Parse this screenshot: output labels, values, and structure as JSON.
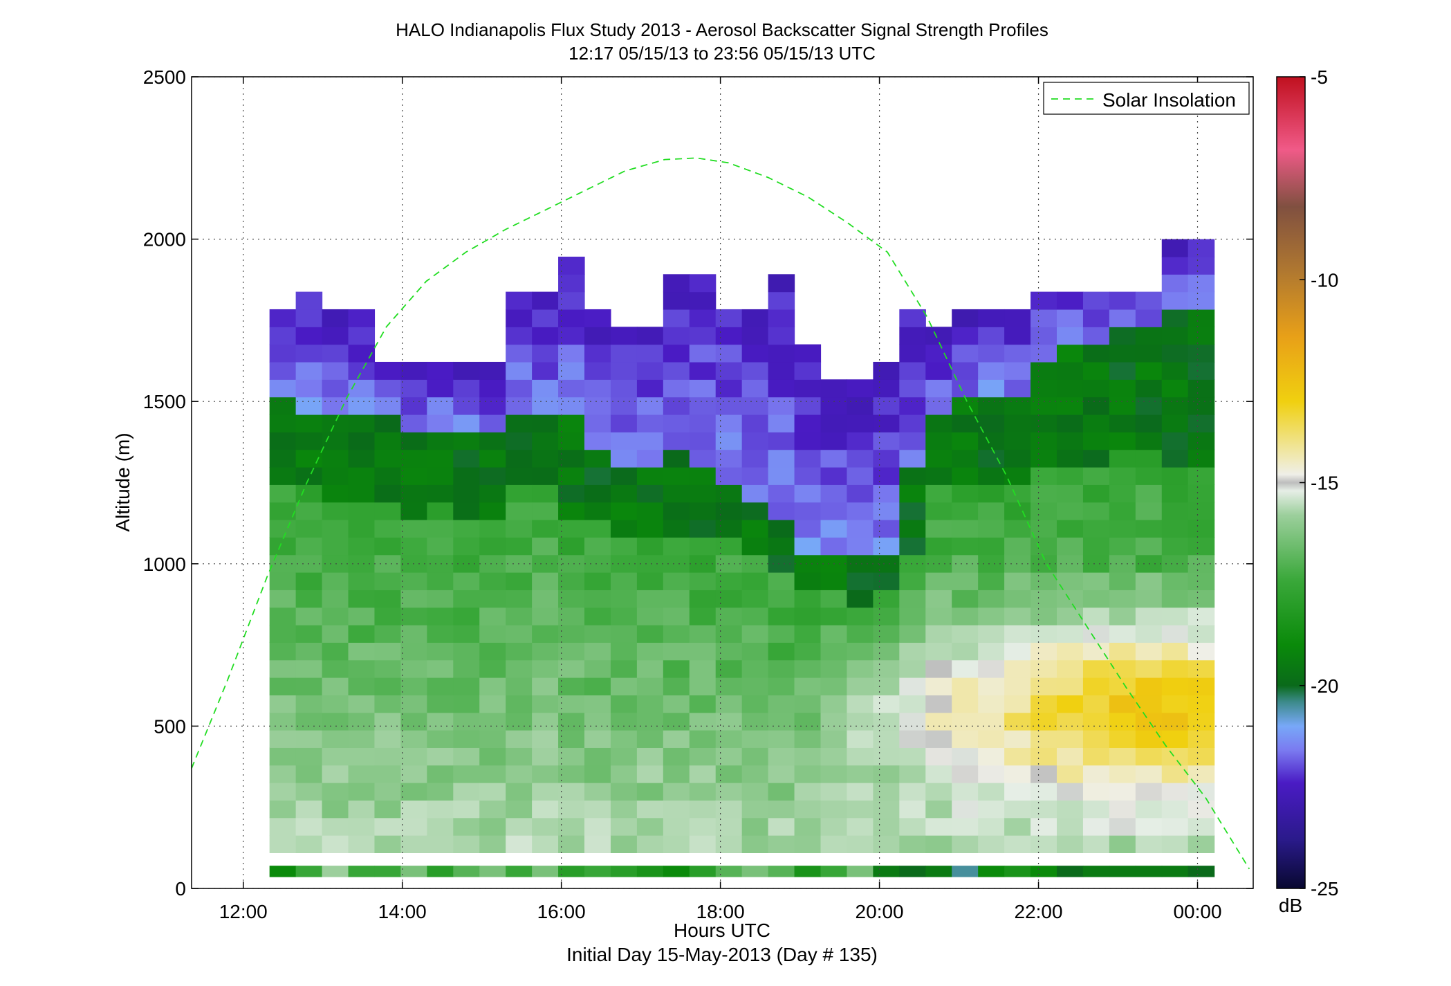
{
  "chart_data": {
    "type": "heatmap",
    "title": "HALO Indianapolis Flux Study 2013 - Aerosol Backscatter Signal Strength Profiles",
    "subtitle": "12:17 05/15/13 to 23:56 05/15/13  UTC",
    "xlabel": "Hours UTC",
    "xlabel2": "Initial Day 15-May-2013 (Day # 135)",
    "ylabel": "Altitude (m)",
    "xlim": [
      11.35,
      24.7
    ],
    "ylim": [
      0,
      2500
    ],
    "x_ticks": [
      12,
      14,
      16,
      18,
      20,
      22,
      24
    ],
    "x_tick_labels": [
      "12:00",
      "14:00",
      "16:00",
      "18:00",
      "20:00",
      "22:00",
      "00:00"
    ],
    "y_ticks": [
      0,
      500,
      1000,
      1500,
      2000,
      2500
    ],
    "y_tick_labels": [
      "0",
      "500",
      "1000",
      "1500",
      "2000",
      "2500"
    ],
    "grid": true,
    "colorbar": {
      "label": "dB",
      "range": [
        -25,
        -5
      ],
      "ticks": [
        -25,
        -20,
        -15,
        -10,
        -5
      ],
      "tick_labels": [
        "-25",
        "-20",
        "-15",
        "-10",
        "-5"
      ]
    },
    "legend": {
      "position": "top-right",
      "entries": [
        "Solar Insolation"
      ]
    },
    "heatmap": {
      "x_start_hours": 12.33,
      "bin_hours": 0.33,
      "n_bins": 36,
      "ground_row_altitude_range_m": [
        35,
        70
      ],
      "main_rows_start_altitude_m": 110,
      "row_height_m": 54,
      "cloud_top_m": [
        1760,
        1860,
        1760,
        1760,
        1600,
        1600,
        1600,
        1600,
        1600,
        1840,
        1840,
        1950,
        1760,
        1720,
        1720,
        1900,
        1900,
        1810,
        1810,
        1870,
        1680,
        1570,
        1570,
        1610,
        1760,
        1720,
        1760,
        1800,
        1800,
        1840,
        1840,
        1840,
        1840,
        1840,
        1990,
        1990
      ],
      "mixed_layer_top_m": [
        1510,
        1480,
        1480,
        1460,
        1440,
        1420,
        1420,
        1410,
        1400,
        1450,
        1470,
        1460,
        1340,
        1290,
        1280,
        1330,
        1280,
        1270,
        1200,
        1130,
        1040,
        1020,
        1020,
        1050,
        1300,
        1450,
        1500,
        1520,
        1520,
        1620,
        1680,
        1700,
        1720,
        1720,
        1760,
        1790
      ],
      "residual_layer_top_m": [
        1260,
        1230,
        1210,
        1200,
        1170,
        1160,
        1180,
        1160,
        1150,
        1220,
        1240,
        1140,
        1120,
        1080,
        1070,
        1100,
        1100,
        1070,
        1050,
        1000,
        930,
        900,
        890,
        900,
        1050,
        1240,
        1260,
        1260,
        1260,
        1300,
        1300,
        1320,
        1330,
        1330,
        1300,
        1300
      ],
      "ground_row_db": [
        -19.0,
        -17.5,
        -16.0,
        -17.5,
        -17.5,
        -16.5,
        -18.0,
        -17.0,
        -16.5,
        -17.5,
        -16.5,
        -18.0,
        -17.5,
        -18.0,
        -18.5,
        -19.0,
        -18.0,
        -17.0,
        -16.5,
        -17.0,
        -18.5,
        -17.5,
        -16.5,
        -19.5,
        -20.0,
        -19.5,
        -20.5,
        -19.0,
        -18.5,
        -19.0,
        -20.0,
        -19.5,
        -19.5,
        -19.5,
        -19.5,
        -20.0
      ]
    },
    "series": [
      {
        "name": "Solar Insolation",
        "style": "dashed",
        "color": "#22dd22",
        "x": [
          11.35,
          11.8,
          12.3,
          12.8,
          13.3,
          13.8,
          14.3,
          14.8,
          15.3,
          15.8,
          16.3,
          16.8,
          17.3,
          17.7,
          18.1,
          18.6,
          19.1,
          19.6,
          20.1,
          20.6,
          21.1,
          21.6,
          22.1,
          22.6,
          23.1,
          23.6,
          24.1,
          24.65
        ],
        "y": [
          370,
          640,
          960,
          1250,
          1510,
          1730,
          1870,
          1960,
          2030,
          2090,
          2150,
          2210,
          2245,
          2250,
          2235,
          2190,
          2130,
          2050,
          1960,
          1760,
          1500,
          1270,
          1000,
          810,
          620,
          440,
          280,
          60
        ]
      }
    ]
  }
}
